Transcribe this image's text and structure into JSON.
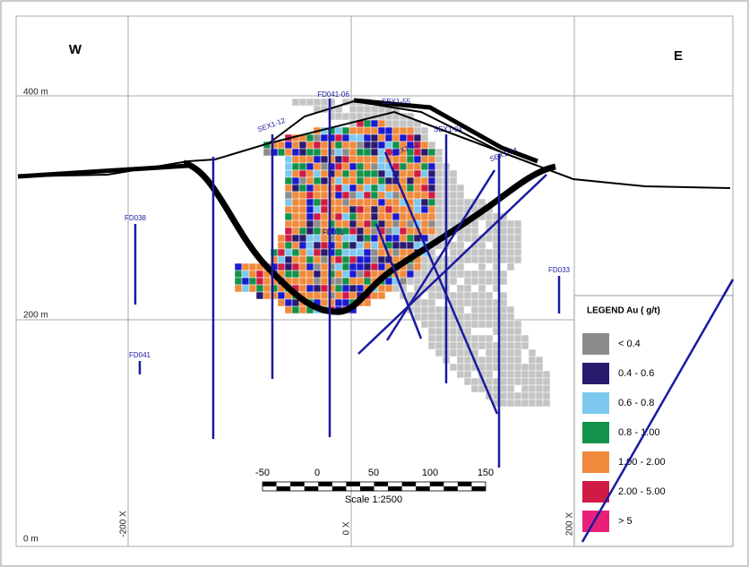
{
  "compass": {
    "west": "W",
    "east": "E"
  },
  "elevations": [
    "400 m",
    "200 m",
    "0 m"
  ],
  "eastings": [
    "-200 X",
    "0 X",
    "200 X"
  ],
  "drillholes": [
    "FD038",
    "FD041",
    "FD031",
    "FD033",
    "FD041-06",
    "SEX1-55",
    "SEX1-12",
    "SEX1-04",
    "SEX1-62",
    "SEX1-14"
  ],
  "scale": {
    "ticks": [
      "-50",
      "0",
      "50",
      "100",
      "150"
    ],
    "title": "Scale 1:2500"
  },
  "legend": {
    "title": "LEGEND  Au ( g/t)",
    "items": [
      {
        "label": "< 0.4",
        "color": "#8c8c8c"
      },
      {
        "label": "0.4 - 0.6",
        "color": "#2a1a6e"
      },
      {
        "label": "0.6 - 0.8",
        "color": "#7cc8ee"
      },
      {
        "label": "0.8 - 1.00",
        "color": "#12924a"
      },
      {
        "label": "1.00 - 2.00",
        "color": "#f08a3c"
      },
      {
        "label": "2.00 - 5.00",
        "color": "#d01c44"
      },
      {
        "label": "> 5",
        "color": "#e8207a"
      }
    ]
  }
}
